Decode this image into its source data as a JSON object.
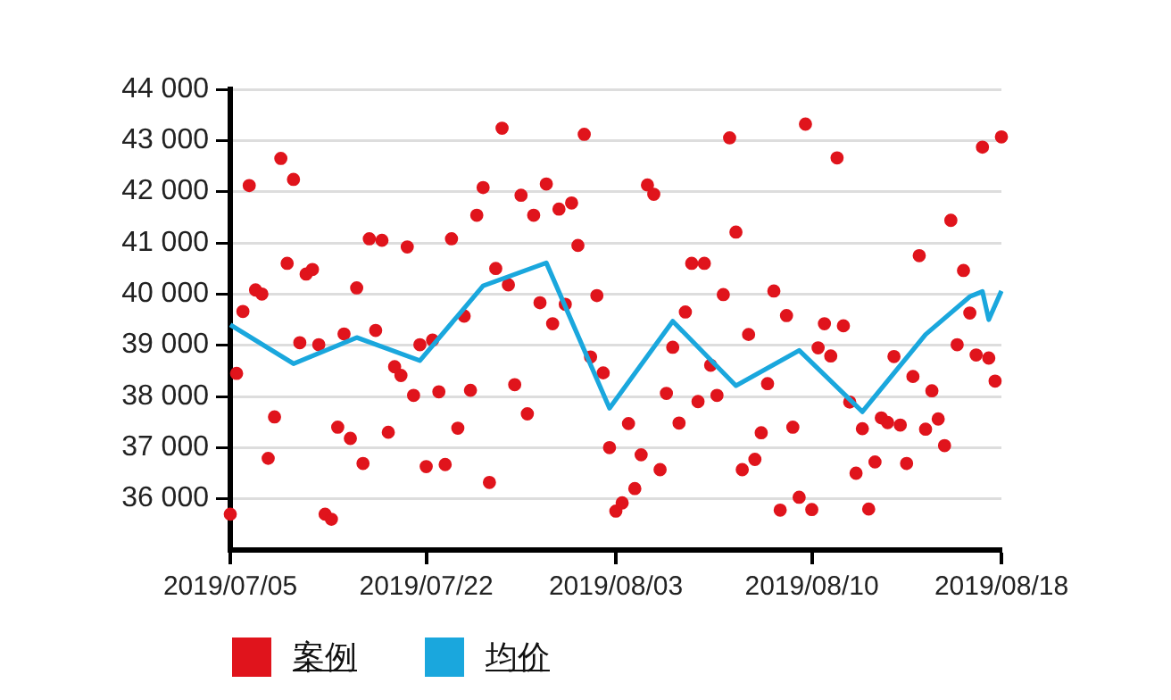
{
  "chart_data": {
    "type": "scatter",
    "ylim": [
      35000,
      44000
    ],
    "categories": [
      "2019/07/05",
      null,
      null,
      null,
      null,
      null,
      null,
      null,
      null,
      null,
      null,
      null,
      null,
      null,
      null,
      null,
      null,
      null,
      null,
      null,
      null,
      null,
      null,
      null,
      null,
      null,
      null,
      null,
      null,
      null,
      null,
      "2019/07/22",
      null,
      null,
      null,
      null,
      null,
      null,
      null,
      null,
      null,
      null,
      null,
      null,
      null,
      null,
      null,
      null,
      null,
      null,
      null,
      null,
      null,
      null,
      null,
      null,
      null,
      null,
      null,
      null,
      null,
      "2019/08/03",
      null,
      null,
      null,
      null,
      null,
      null,
      null,
      null,
      null,
      null,
      null,
      null,
      null,
      null,
      null,
      null,
      null,
      null,
      null,
      null,
      null,
      null,
      null,
      null,
      null,
      null,
      null,
      null,
      null,
      null,
      "2019/08/10",
      null,
      null,
      null,
      null,
      null,
      null,
      null,
      null,
      null,
      null,
      null,
      null,
      null,
      null,
      null,
      null,
      null,
      null,
      null,
      null,
      null,
      null,
      null,
      null,
      null,
      null,
      null,
      null,
      null,
      "2019/08/18"
    ],
    "yticks": [
      {
        "value": 36000,
        "label": "36 000"
      },
      {
        "value": 37000,
        "label": "37 000"
      },
      {
        "value": 38000,
        "label": "38 000"
      },
      {
        "value": 39000,
        "label": "39 000"
      },
      {
        "value": 40000,
        "label": "40 000"
      },
      {
        "value": 41000,
        "label": "41 000"
      },
      {
        "value": 42000,
        "label": "42 000"
      },
      {
        "value": 43000,
        "label": "43 000"
      },
      {
        "value": 44000,
        "label": "44 000"
      }
    ],
    "grid": "y",
    "legend": "bottom left",
    "marker": "circle",
    "series": [
      {
        "name": "案例",
        "color": "#e0141c",
        "values": [
          35700,
          38450,
          39660,
          42120,
          40080,
          40000,
          36790,
          37600,
          42650,
          40600,
          42240,
          39050,
          40390,
          40480,
          39010,
          35700,
          35600,
          37400,
          39220,
          37180,
          40120,
          36690,
          41080,
          39290,
          41050,
          37300,
          38580,
          38410,
          40920,
          38020,
          39010,
          36630,
          39100,
          38090,
          36670,
          41080,
          37380,
          39570,
          38120,
          41540,
          42080,
          36320,
          40500,
          43240,
          40180,
          38230,
          41930,
          37660,
          41540,
          39830,
          42150,
          39420,
          41660,
          39800,
          41780,
          40950,
          43120,
          38770,
          39970,
          38460,
          37000,
          35760,
          35920,
          37470,
          36200,
          36860,
          42130,
          41950,
          36570,
          38060,
          38960,
          37480,
          39650,
          40600,
          37900,
          40600,
          38610,
          38020,
          39990,
          43050,
          41210,
          36570,
          39210,
          36770,
          37290,
          38250,
          40060,
          35780,
          39580,
          37400,
          36030,
          43320,
          35790,
          38950,
          39420,
          38790,
          42660,
          39380,
          37890,
          36500,
          37370,
          35800,
          36720,
          37580,
          37490,
          38780,
          37440,
          36690,
          38390,
          40750,
          37360,
          38110,
          37560,
          37040,
          41440,
          39010,
          40460,
          39630,
          38810,
          42870,
          38750,
          38300,
          43070
        ]
      },
      {
        "name": "均价",
        "type": "line",
        "color": "#1aa7dd",
        "marker": "none",
        "line_style": "solid",
        "values": [
          39400,
          null,
          null,
          null,
          null,
          null,
          null,
          null,
          null,
          null,
          38640,
          null,
          null,
          null,
          null,
          null,
          null,
          null,
          null,
          null,
          39150,
          null,
          null,
          null,
          null,
          null,
          null,
          null,
          null,
          null,
          38700,
          null,
          null,
          null,
          null,
          null,
          null,
          null,
          null,
          null,
          40160,
          null,
          null,
          null,
          null,
          null,
          null,
          null,
          null,
          null,
          40610,
          null,
          null,
          null,
          null,
          null,
          null,
          null,
          null,
          null,
          37770,
          null,
          null,
          null,
          null,
          null,
          null,
          null,
          null,
          null,
          39470,
          null,
          null,
          null,
          null,
          null,
          null,
          null,
          null,
          null,
          38210,
          null,
          null,
          null,
          null,
          null,
          null,
          null,
          null,
          null,
          38900,
          null,
          null,
          null,
          null,
          null,
          null,
          null,
          null,
          null,
          37700,
          null,
          null,
          null,
          null,
          null,
          null,
          null,
          null,
          null,
          39210,
          null,
          null,
          null,
          null,
          null,
          null,
          39950,
          null,
          40050,
          39500,
          null,
          40060
        ]
      }
    ]
  }
}
